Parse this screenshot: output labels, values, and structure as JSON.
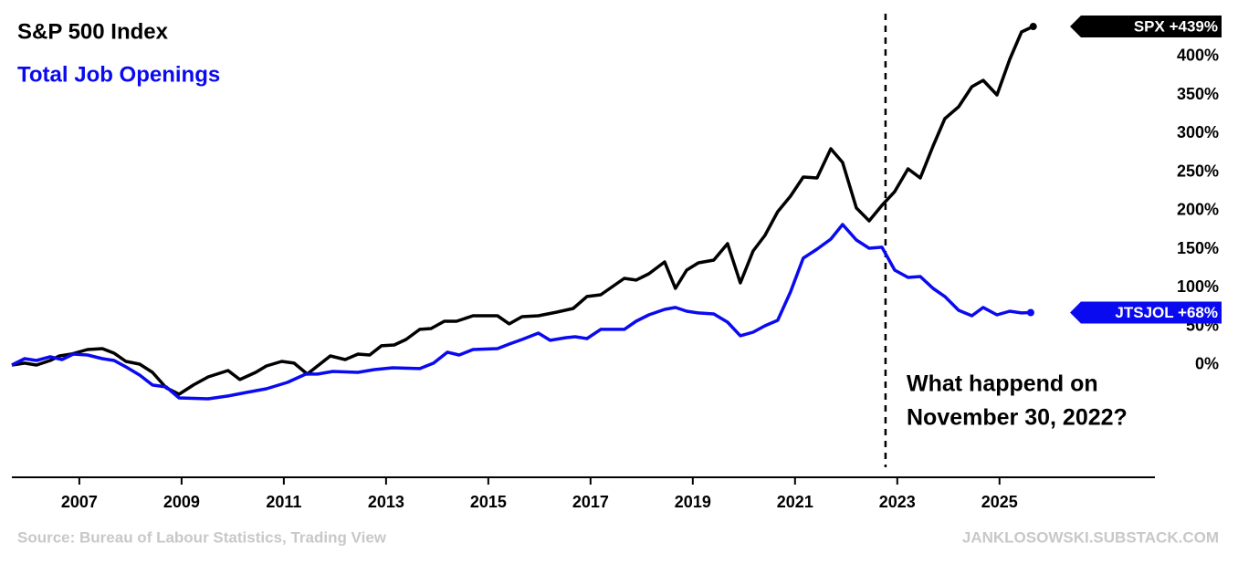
{
  "chart_data": {
    "type": "line",
    "annotation": [
      "What happend on",
      "November 30, 2022?"
    ],
    "source": "Source:  Bureau of Labour Statistics, Trading View",
    "watermark": "JANKLOSOWSKI.SUBSTACK.COM",
    "xlim": [
      2005.68,
      2028.04
    ],
    "xticks": [
      2007,
      2009,
      2011,
      2013,
      2015,
      2017,
      2019,
      2021,
      2023,
      2025
    ],
    "ylim": [
      -145.6,
      473
    ],
    "yticks": [
      {
        "value": 0,
        "label": "0%"
      },
      {
        "value": 50,
        "label": "50%"
      },
      {
        "value": 100,
        "label": "100%"
      },
      {
        "value": 150,
        "label": "150%"
      },
      {
        "value": 200,
        "label": "200%"
      },
      {
        "value": 250,
        "label": "250%"
      },
      {
        "value": 300,
        "label": "300%"
      },
      {
        "value": 350,
        "label": "350%"
      },
      {
        "value": 400,
        "label": "400%"
      }
    ],
    "vline_x": 2022.77,
    "series": [
      {
        "name": "S&P 500 Index",
        "color": "#000000",
        "end_label": "SPX  +439%",
        "x": [
          2005.68,
          2005.93,
          2006.16,
          2006.43,
          2006.61,
          2006.84,
          2007.16,
          2007.45,
          2007.68,
          2007.91,
          2008.18,
          2008.43,
          2008.7,
          2008.95,
          2009.23,
          2009.52,
          2009.91,
          2010.14,
          2010.45,
          2010.66,
          2010.96,
          2011.2,
          2011.46,
          2011.66,
          2011.91,
          2012.2,
          2012.45,
          2012.68,
          2012.91,
          2013.16,
          2013.39,
          2013.66,
          2013.88,
          2014.14,
          2014.38,
          2014.7,
          2015.18,
          2015.41,
          2015.66,
          2015.98,
          2016.34,
          2016.66,
          2016.93,
          2017.2,
          2017.43,
          2017.66,
          2017.89,
          2018.14,
          2018.45,
          2018.66,
          2018.88,
          2019.11,
          2019.41,
          2019.68,
          2019.93,
          2020.18,
          2020.41,
          2020.66,
          2020.91,
          2021.16,
          2021.43,
          2021.7,
          2021.93,
          2022.2,
          2022.45,
          2022.7,
          2022.95,
          2023.21,
          2023.45,
          2023.7,
          2023.93,
          2024.2,
          2024.46,
          2024.68,
          2024.95,
          2025.2,
          2025.43,
          2025.66
        ],
        "values": [
          0,
          2.4,
          0,
          5.9,
          11.8,
          14.2,
          20.1,
          21.3,
          15.4,
          4.7,
          1.2,
          -9.5,
          -29.6,
          -37.9,
          -26.0,
          -15.4,
          -7.1,
          -18.9,
          -9.5,
          -1.2,
          4.7,
          2.4,
          -11.8,
          -1.2,
          11.8,
          7.1,
          14.2,
          13.0,
          24.9,
          26.0,
          33.1,
          46.2,
          47.3,
          56.8,
          56.8,
          63.9,
          63.9,
          53.3,
          62.7,
          63.9,
          68.6,
          73.4,
          88.8,
          91.1,
          101.8,
          112.4,
          110.1,
          118.3,
          133.7,
          99.4,
          123.1,
          132.5,
          136.1,
          157.4,
          106.5,
          147.9,
          168.0,
          198.8,
          218.9,
          243.8,
          242.6,
          280.5,
          262.7,
          203.6,
          187.0,
          207.1,
          224.9,
          254.4,
          242.6,
          284.0,
          319.5,
          334.9,
          360.9,
          369.2,
          350.3,
          396.4,
          431.9,
          439
        ]
      },
      {
        "name": "Total Job Openings",
        "color": "#0a0af0",
        "end_label": "JTSJOL  +68%",
        "x": [
          2005.68,
          2005.93,
          2006.16,
          2006.43,
          2006.66,
          2006.88,
          2007.16,
          2007.45,
          2007.68,
          2007.91,
          2008.18,
          2008.43,
          2008.7,
          2008.95,
          2009.52,
          2009.91,
          2010.27,
          2010.66,
          2011.07,
          2011.43,
          2011.66,
          2011.96,
          2012.45,
          2012.77,
          2013.13,
          2013.66,
          2013.93,
          2014.2,
          2014.43,
          2014.7,
          2015.18,
          2015.41,
          2015.66,
          2015.98,
          2016.21,
          2016.52,
          2016.7,
          2016.93,
          2017.2,
          2017.66,
          2017.89,
          2018.14,
          2018.45,
          2018.66,
          2018.88,
          2019.11,
          2019.41,
          2019.68,
          2019.93,
          2020.18,
          2020.41,
          2020.66,
          2020.91,
          2021.16,
          2021.43,
          2021.7,
          2021.93,
          2022.2,
          2022.45,
          2022.7,
          2022.95,
          2023.21,
          2023.45,
          2023.7,
          2023.93,
          2024.2,
          2024.46,
          2024.68,
          2024.95,
          2025.2,
          2025.43,
          2025.61
        ],
        "values": [
          0,
          8.3,
          5.9,
          10.7,
          7.1,
          14.2,
          13.0,
          8.3,
          5.9,
          -2.4,
          -13.0,
          -26.0,
          -28.4,
          -42.6,
          -43.8,
          -40.2,
          -35.5,
          -30.8,
          -22.5,
          -11.8,
          -11.8,
          -8.3,
          -9.5,
          -5.9,
          -3.6,
          -4.7,
          2.4,
          16.6,
          13.0,
          20.1,
          21.3,
          27.2,
          33.1,
          41.4,
          32.0,
          35.5,
          36.7,
          34.3,
          46.2,
          46.2,
          56.8,
          65.1,
          72.2,
          74.6,
          69.8,
          67.5,
          66.3,
          55.6,
          37.9,
          42.6,
          50.9,
          58.0,
          94.7,
          138.5,
          150.3,
          163.3,
          182.2,
          162.1,
          151.5,
          152.7,
          123.1,
          113.6,
          114.8,
          99.4,
          88.8,
          71.0,
          63.9,
          74.6,
          65.1,
          69.8,
          67.5,
          68
        ]
      }
    ]
  }
}
